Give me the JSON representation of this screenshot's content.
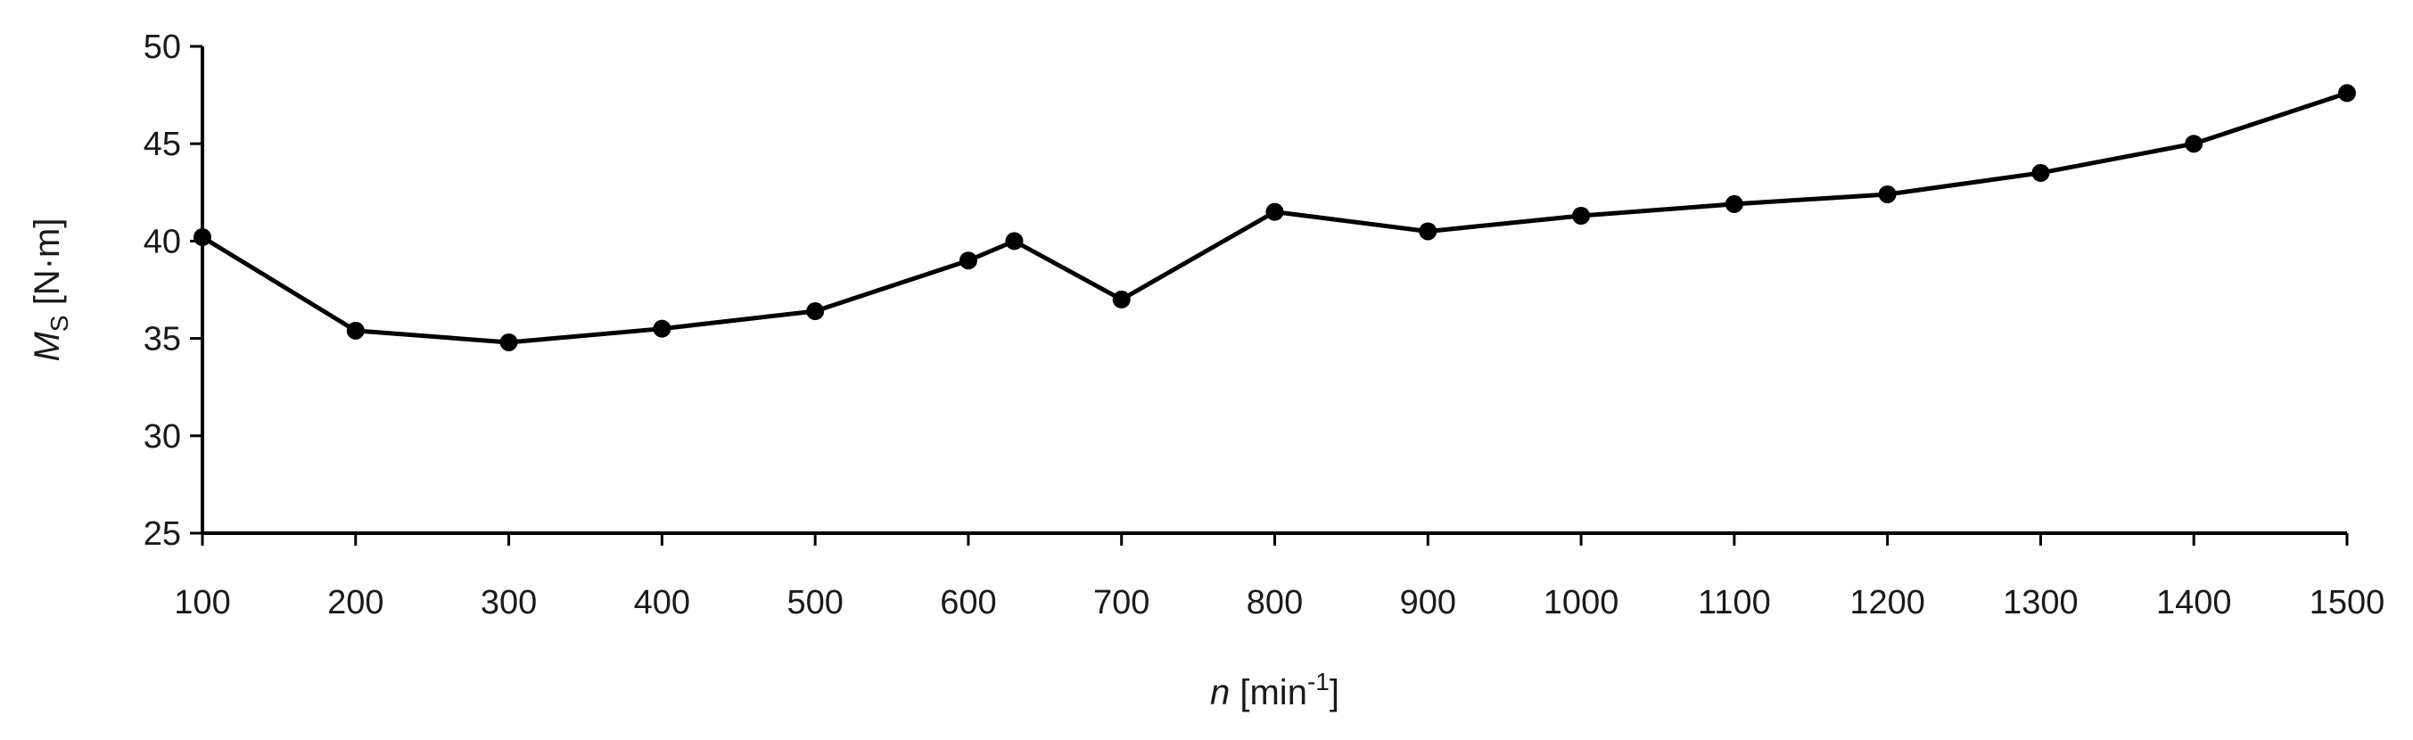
{
  "chart_data": {
    "type": "line",
    "xlabel": {
      "prefix": "n",
      "text": "[min",
      "sup": "-1",
      "suffix": "]"
    },
    "ylabel": {
      "prefix": "M",
      "sub": "S",
      "text": "[N·m]"
    },
    "xlim": [
      100,
      1500
    ],
    "ylim": [
      25,
      50
    ],
    "xticks": [
      100,
      200,
      300,
      400,
      500,
      600,
      700,
      800,
      900,
      1000,
      1100,
      1200,
      1300,
      1400,
      1500
    ],
    "yticks": [
      25,
      30,
      35,
      40,
      45,
      50
    ],
    "grid": false,
    "series": [
      {
        "x": [
          100,
          200,
          300,
          400,
          500,
          600,
          630,
          700,
          800,
          900,
          1000,
          1100,
          1200,
          1300,
          1400,
          1500
        ],
        "y": [
          40.2,
          35.4,
          34.8,
          35.5,
          36.4,
          39.0,
          40.0,
          37.0,
          41.5,
          40.5,
          41.3,
          41.9,
          42.4,
          43.5,
          45.0,
          47.6
        ]
      }
    ]
  }
}
